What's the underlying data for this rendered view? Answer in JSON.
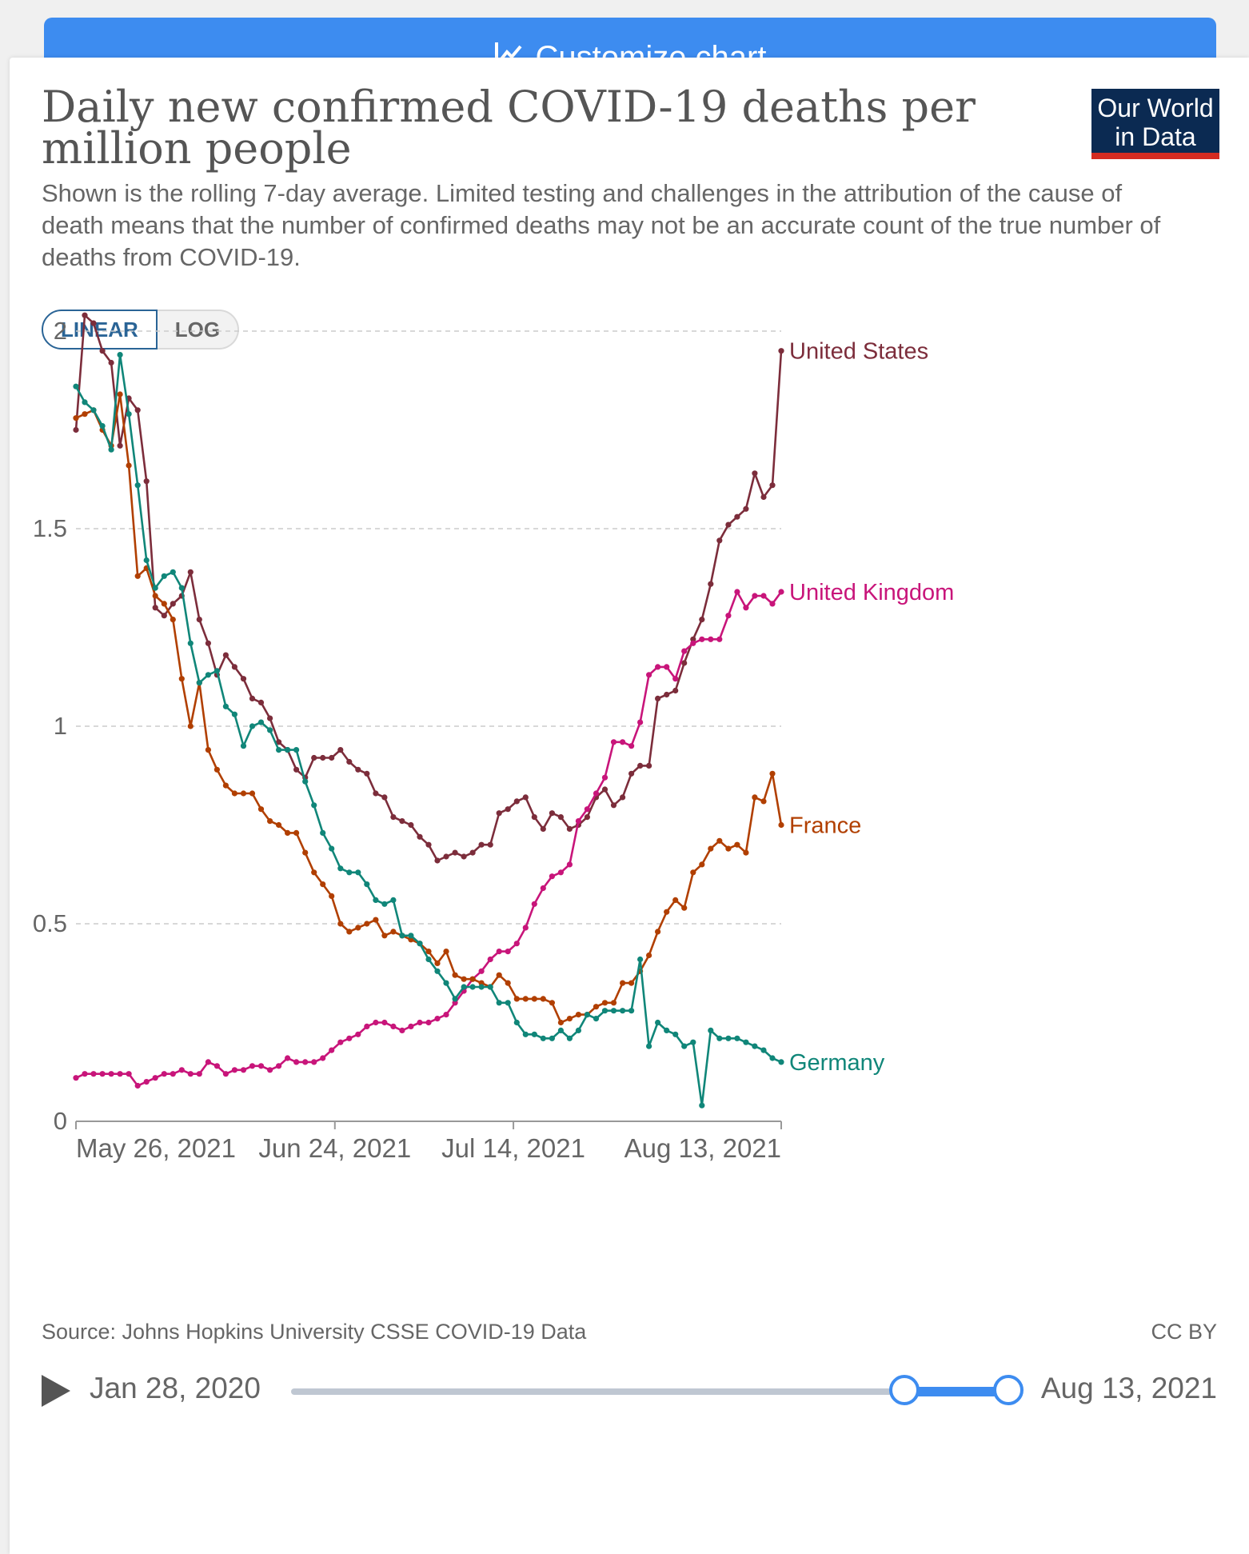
{
  "topbar": {
    "label": "Customize chart"
  },
  "header": {
    "title": "Daily new confirmed COVID-19 deaths per million people",
    "subtitle": "Shown is the rolling 7-day average. Limited testing and challenges in the attribution of the cause of death means that the number of confirmed deaths may not be an accurate count of the true number of deaths from COVID-19.",
    "logo_line1": "Our World",
    "logo_line2": "in Data"
  },
  "scale_toggle": {
    "linear": "LINEAR",
    "log": "LOG",
    "selected": "linear"
  },
  "footer": {
    "source": "Source: Johns Hopkins University CSSE COVID-19 Data",
    "license": "CC BY"
  },
  "timeline": {
    "start": "Jan 28, 2020",
    "end": "Aug 13, 2021"
  },
  "colors": {
    "United States": "#7c2d3b",
    "United Kingdom": "#c8157a",
    "France": "#b13f00",
    "Germany": "#108679",
    "grid": "#cccccc",
    "axis": "#666666"
  },
  "chart_data": {
    "type": "line",
    "x_unit": "day",
    "x_start": "2021-05-26",
    "x_end": "2021-08-13",
    "x_ticks": [
      {
        "date": "2021-05-26",
        "label": "May 26, 2021"
      },
      {
        "date": "2021-06-24",
        "label": "Jun 24, 2021"
      },
      {
        "date": "2021-07-14",
        "label": "Jul 14, 2021"
      },
      {
        "date": "2021-08-13",
        "label": "Aug 13, 2021"
      }
    ],
    "y_ticks": [
      {
        "value": 0,
        "label": "0"
      },
      {
        "value": 0.5,
        "label": "0.5"
      },
      {
        "value": 1,
        "label": "1"
      },
      {
        "value": 1.5,
        "label": "1.5"
      },
      {
        "value": 2,
        "label": "2"
      }
    ],
    "ylim": [
      0,
      2
    ],
    "grid": "horizontal dashed",
    "legend": "line-end labels",
    "series": [
      {
        "name": "United States",
        "values": [
          1.75,
          2.04,
          2.02,
          1.95,
          1.92,
          1.71,
          1.83,
          1.8,
          1.62,
          1.3,
          1.28,
          1.31,
          1.33,
          1.39,
          1.27,
          1.21,
          1.13,
          1.18,
          1.15,
          1.12,
          1.07,
          1.06,
          1.02,
          0.96,
          0.94,
          0.89,
          0.87,
          0.92,
          0.92,
          0.92,
          0.94,
          0.91,
          0.89,
          0.88,
          0.83,
          0.82,
          0.77,
          0.76,
          0.75,
          0.72,
          0.7,
          0.66,
          0.67,
          0.68,
          0.67,
          0.68,
          0.7,
          0.7,
          0.78,
          0.79,
          0.81,
          0.82,
          0.77,
          0.74,
          0.78,
          0.77,
          0.74,
          0.75,
          0.77,
          0.82,
          0.84,
          0.8,
          0.82,
          0.88,
          0.9,
          0.9,
          1.07,
          1.08,
          1.09,
          1.16,
          1.22,
          1.27,
          1.36,
          1.47,
          1.51,
          1.53,
          1.55,
          1.64,
          1.58,
          1.61,
          1.95
        ]
      },
      {
        "name": "United Kingdom",
        "values": [
          0.11,
          0.12,
          0.12,
          0.12,
          0.12,
          0.12,
          0.12,
          0.09,
          0.1,
          0.11,
          0.12,
          0.12,
          0.13,
          0.12,
          0.12,
          0.15,
          0.14,
          0.12,
          0.13,
          0.13,
          0.14,
          0.14,
          0.13,
          0.14,
          0.16,
          0.15,
          0.15,
          0.15,
          0.16,
          0.18,
          0.2,
          0.21,
          0.22,
          0.24,
          0.25,
          0.25,
          0.24,
          0.23,
          0.24,
          0.25,
          0.25,
          0.26,
          0.27,
          0.3,
          0.33,
          0.36,
          0.38,
          0.41,
          0.43,
          0.43,
          0.45,
          0.49,
          0.55,
          0.59,
          0.62,
          0.63,
          0.65,
          0.76,
          0.79,
          0.83,
          0.87,
          0.96,
          0.96,
          0.95,
          1.01,
          1.13,
          1.15,
          1.15,
          1.12,
          1.19,
          1.21,
          1.22,
          1.22,
          1.22,
          1.28,
          1.34,
          1.3,
          1.33,
          1.33,
          1.31,
          1.34
        ]
      },
      {
        "name": "France",
        "values": [
          1.78,
          1.79,
          1.8,
          1.75,
          1.71,
          1.84,
          1.66,
          1.38,
          1.4,
          1.33,
          1.31,
          1.27,
          1.12,
          1.0,
          1.11,
          0.94,
          0.89,
          0.85,
          0.83,
          0.83,
          0.83,
          0.79,
          0.76,
          0.75,
          0.73,
          0.73,
          0.68,
          0.63,
          0.6,
          0.57,
          0.5,
          0.48,
          0.49,
          0.5,
          0.51,
          0.47,
          0.48,
          0.47,
          0.46,
          0.45,
          0.43,
          0.4,
          0.43,
          0.37,
          0.36,
          0.36,
          0.35,
          0.34,
          0.37,
          0.35,
          0.31,
          0.31,
          0.31,
          0.31,
          0.3,
          0.25,
          0.26,
          0.27,
          0.27,
          0.29,
          0.3,
          0.3,
          0.35,
          0.35,
          0.38,
          0.42,
          0.48,
          0.53,
          0.56,
          0.54,
          0.63,
          0.65,
          0.69,
          0.71,
          0.69,
          0.7,
          0.68,
          0.82,
          0.81,
          0.88,
          0.75
        ]
      },
      {
        "name": "Germany",
        "values": [
          1.86,
          1.82,
          1.8,
          1.76,
          1.7,
          1.94,
          1.79,
          1.61,
          1.42,
          1.35,
          1.38,
          1.39,
          1.35,
          1.21,
          1.11,
          1.13,
          1.14,
          1.05,
          1.03,
          0.95,
          1.0,
          1.01,
          0.99,
          0.94,
          0.94,
          0.94,
          0.86,
          0.8,
          0.73,
          0.69,
          0.64,
          0.63,
          0.63,
          0.6,
          0.56,
          0.55,
          0.56,
          0.47,
          0.47,
          0.45,
          0.41,
          0.38,
          0.35,
          0.31,
          0.34,
          0.34,
          0.34,
          0.34,
          0.3,
          0.3,
          0.25,
          0.22,
          0.22,
          0.21,
          0.21,
          0.23,
          0.21,
          0.23,
          0.27,
          0.26,
          0.28,
          0.28,
          0.28,
          0.28,
          0.41,
          0.19,
          0.25,
          0.23,
          0.22,
          0.19,
          0.2,
          0.04,
          0.23,
          0.21,
          0.21,
          0.21,
          0.2,
          0.19,
          0.18,
          0.16,
          0.15
        ]
      }
    ]
  }
}
